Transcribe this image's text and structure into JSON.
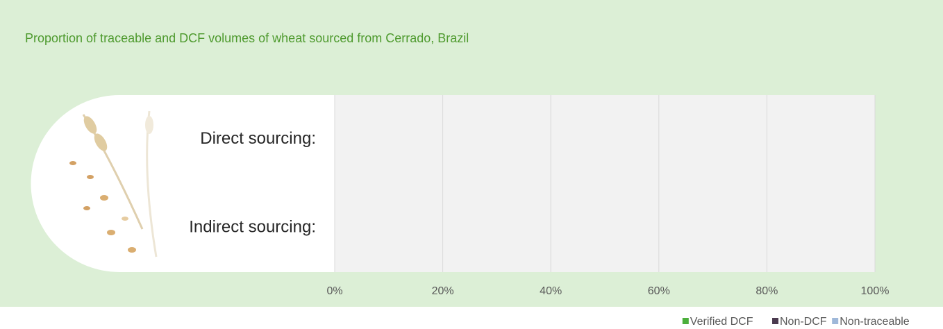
{
  "chart_data": {
    "type": "stacked-barh",
    "title": "Proportion of traceable and DCF volumes of wheat sourced from Cerrado, Brazil",
    "categories": [
      "Direct sourcing:",
      "Indirect sourcing:"
    ],
    "series": [
      {
        "name": "Verified DCF",
        "color": "#4caf3c",
        "values": [
          0,
          0
        ]
      },
      {
        "name": "Non-DCF",
        "color": "#4b3a4f",
        "values": [
          0,
          0
        ]
      },
      {
        "name": "Non-traceable",
        "color": "#9fb8d9",
        "values": [
          0,
          0
        ]
      }
    ],
    "xlim": [
      0,
      100
    ],
    "xticks": [
      {
        "value": 0,
        "label": "0%"
      },
      {
        "value": 20,
        "label": "20%"
      },
      {
        "value": 40,
        "label": "40%"
      },
      {
        "value": 60,
        "label": "60%"
      },
      {
        "value": 80,
        "label": "80%"
      },
      {
        "value": 100,
        "label": "100%"
      }
    ],
    "grid": true
  }
}
